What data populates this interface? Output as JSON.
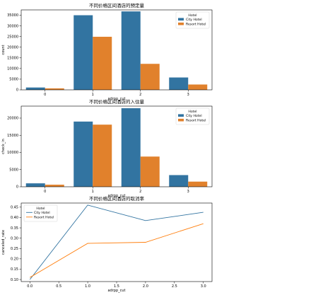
{
  "chart_data": [
    {
      "type": "bar",
      "title": "不同价格区间酒店的预定量",
      "xlabel": "adrpp_cut",
      "ylabel": "count",
      "categories": [
        "0",
        "1",
        "2",
        "3"
      ],
      "series": [
        {
          "name": "City Hotel",
          "color": "#3274a1",
          "values": [
            1100,
            35000,
            36800,
            5800
          ]
        },
        {
          "name": "Resort Hotel",
          "color": "#e1812c",
          "values": [
            700,
            24900,
            12200,
            2500
          ]
        }
      ],
      "ylim": [
        0,
        37500
      ],
      "yticks": [
        0,
        5000,
        10000,
        15000,
        20000,
        25000,
        30000,
        35000
      ],
      "legend": {
        "title": "Hotel",
        "placement": "top-right"
      }
    },
    {
      "type": "bar",
      "title": "不同价格区间酒店的入住量",
      "xlabel": "adrpp_cut",
      "ylabel": "check_in",
      "categories": [
        "0",
        "1",
        "2",
        "3"
      ],
      "series": [
        {
          "name": "City Hotel",
          "color": "#3274a1",
          "values": [
            1000,
            19000,
            22900,
            3400
          ]
        },
        {
          "name": "Resort Hotel",
          "color": "#e1812c",
          "values": [
            600,
            18100,
            8800,
            1500
          ]
        }
      ],
      "ylim": [
        0,
        23500
      ],
      "yticks": [
        0,
        5000,
        10000,
        15000,
        20000
      ],
      "legend": {
        "title": "Hotel",
        "placement": "top-right"
      }
    },
    {
      "type": "line",
      "title": "不同价格区间酒店的取消率",
      "xlabel": "adrpp_cut",
      "ylabel": "canceled_rate",
      "x": [
        0,
        1,
        2,
        3
      ],
      "series": [
        {
          "name": "City Hotel",
          "color": "#3274a1",
          "values": [
            0.1,
            0.46,
            0.385,
            0.425
          ]
        },
        {
          "name": "Resort Hotel",
          "color": "#ff7f0e",
          "values": [
            0.11,
            0.275,
            0.28,
            0.37
          ]
        }
      ],
      "xlim": [
        -0.15,
        3.15
      ],
      "ylim": [
        0.09,
        0.47
      ],
      "xticks": [
        0.0,
        0.5,
        1.0,
        1.5,
        2.0,
        2.5,
        3.0
      ],
      "xtick_labels": [
        "0.0",
        "0.5",
        "1.0",
        "1.5",
        "2.0",
        "2.5",
        "3.0"
      ],
      "yticks": [
        0.1,
        0.15,
        0.2,
        0.25,
        0.3,
        0.35,
        0.4,
        0.45
      ],
      "ytick_labels": [
        "0.10",
        "0.15",
        "0.20",
        "0.25",
        "0.30",
        "0.35",
        "0.40",
        "0.45"
      ],
      "legend": {
        "title": "Hotel",
        "placement": "top-left"
      }
    }
  ]
}
